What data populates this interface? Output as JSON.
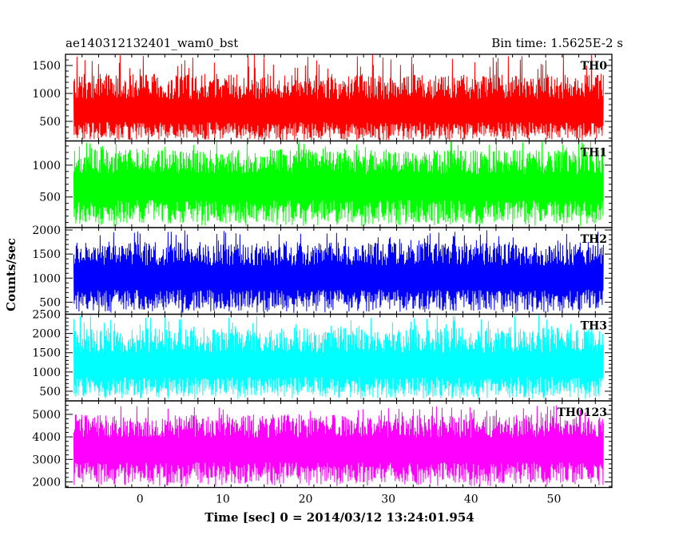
{
  "chart_data": {
    "type": "line",
    "title": "ae140312132401_wam0_bst",
    "subtitle": "Bin time: 1.5625E-2 s",
    "xlabel": "Time [sec] 0 = 2014/03/12 13:24:01.954",
    "ylabel": "Counts/sec",
    "xlim": [
      -9,
      57
    ],
    "x_ticks": [
      0,
      10,
      20,
      30,
      40,
      50
    ],
    "data_x_range": [
      -8,
      56
    ],
    "bin_time_s": 0.015625,
    "panels": [
      {
        "name": "TH0",
        "color": "#ff0000",
        "ylim": [
          150,
          1700
        ],
        "y_ticks": [
          500,
          1000,
          1500
        ],
        "mean": 650,
        "typical_min": 180,
        "typical_max": 1350,
        "peak_max": 1700
      },
      {
        "name": "TH1",
        "color": "#00ff00",
        "ylim": [
          20,
          1380
        ],
        "y_ticks": [
          500,
          1000
        ],
        "mean": 650,
        "typical_min": 80,
        "typical_max": 1250,
        "peak_max": 1380
      },
      {
        "name": "TH2",
        "color": "#0000ff",
        "ylim": [
          250,
          2050
        ],
        "y_ticks": [
          500,
          1000,
          1500,
          2000
        ],
        "mean": 1000,
        "typical_min": 320,
        "typical_max": 1750,
        "peak_max": 2000
      },
      {
        "name": "TH3",
        "color": "#00ffff",
        "ylim": [
          250,
          2500
        ],
        "y_ticks": [
          500,
          1000,
          1500,
          2000,
          2500
        ],
        "mean": 1150,
        "typical_min": 350,
        "typical_max": 2150,
        "peak_max": 2500
      },
      {
        "name": "TH0123",
        "color": "#ff00ff",
        "ylim": [
          1750,
          5600
        ],
        "y_ticks": [
          2000,
          3000,
          4000,
          5000
        ],
        "mean": 3400,
        "typical_min": 1900,
        "typical_max": 5000,
        "peak_max": 5400
      }
    ]
  }
}
